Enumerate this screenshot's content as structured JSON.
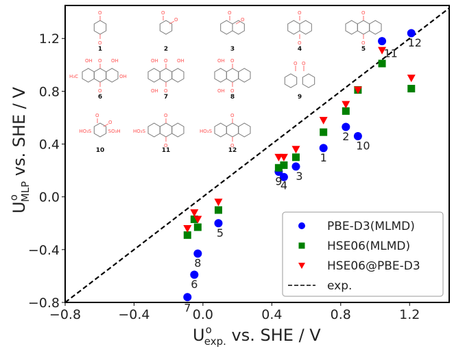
{
  "chart_data": {
    "type": "scatter",
    "title": "",
    "xlabel": {
      "main": "U",
      "sup": "o",
      "sub": "exp.",
      "rest": " vs. SHE / V"
    },
    "ylabel": {
      "main": "U",
      "sup": "o",
      "sub": "MLP",
      "rest": " vs. SHE / V"
    },
    "xlim": [
      -0.8,
      1.43
    ],
    "ylim": [
      -0.8,
      1.45
    ],
    "xticks": [
      -0.8,
      -0.4,
      0.0,
      0.4,
      0.8,
      1.2
    ],
    "yticks": [
      -0.8,
      -0.4,
      0.0,
      0.4,
      0.8,
      1.2
    ],
    "xtick_labels": [
      "−0.8",
      "−0.4",
      "0.0",
      "0.4",
      "0.8",
      "1.2"
    ],
    "ytick_labels": [
      "−0.8",
      "−0.4",
      "0.0",
      "0.4",
      "0.8",
      "1.2"
    ],
    "grid": false,
    "legend_position": "bottom-right",
    "molecules": [
      "1",
      "2",
      "3",
      "4",
      "5",
      "6",
      "7",
      "8",
      "9",
      "10",
      "11",
      "12"
    ],
    "x": [
      0.7,
      0.83,
      0.54,
      0.47,
      0.09,
      -0.05,
      -0.09,
      -0.03,
      0.44,
      0.9,
      1.04,
      1.21
    ],
    "series": [
      {
        "name": "PBE-D3(MLMD)",
        "marker": "circle",
        "color": "#0000ff",
        "values": [
          0.37,
          0.53,
          0.23,
          0.15,
          -0.2,
          -0.59,
          -0.76,
          -0.43,
          0.19,
          0.46,
          1.18,
          1.24
        ]
      },
      {
        "name": "HSE06(MLMD)",
        "marker": "square",
        "color": "#008000",
        "values": [
          0.49,
          0.65,
          0.3,
          0.24,
          -0.1,
          -0.17,
          -0.29,
          -0.23,
          0.22,
          0.81,
          1.01,
          0.82
        ]
      },
      {
        "name": "HSE06@PBE-D3",
        "marker": "triangle-down",
        "color": "#ff0000",
        "values": [
          0.58,
          0.7,
          0.36,
          0.3,
          -0.04,
          -0.12,
          -0.24,
          -0.17,
          0.3,
          0.81,
          1.11,
          0.9
        ]
      }
    ],
    "reference_line": {
      "name": "exp.",
      "style": "dashed",
      "color": "#000000",
      "slope": 1,
      "intercept": 0
    },
    "point_labels": [
      {
        "text": "1",
        "x": 0.7,
        "y": 0.3
      },
      {
        "text": "2",
        "x": 0.83,
        "y": 0.46
      },
      {
        "text": "3",
        "x": 0.56,
        "y": 0.16
      },
      {
        "text": "4",
        "x": 0.47,
        "y": 0.09
      },
      {
        "text": "5",
        "x": 0.1,
        "y": -0.27
      },
      {
        "text": "6",
        "x": -0.05,
        "y": -0.66
      },
      {
        "text": "7",
        "x": -0.09,
        "y": -0.84
      },
      {
        "text": "8",
        "x": -0.03,
        "y": -0.5
      },
      {
        "text": "9",
        "x": 0.44,
        "y": 0.12
      },
      {
        "text": "10",
        "x": 0.93,
        "y": 0.39
      },
      {
        "text": "11",
        "x": 1.09,
        "y": 1.09
      },
      {
        "text": "12",
        "x": 1.23,
        "y": 1.17
      }
    ],
    "inset": {
      "description": "chemical structures of the quinone molecules",
      "labels": [
        "1",
        "2",
        "3",
        "4",
        "5",
        "6",
        "7",
        "8",
        "9",
        "10",
        "11",
        "12"
      ],
      "atom_labels": {
        "oh": "OH",
        "o": "O",
        "methyl": "H₃C",
        "sulfo_left": "HO₃S",
        "sulfo_right": "SO₃H"
      }
    }
  }
}
